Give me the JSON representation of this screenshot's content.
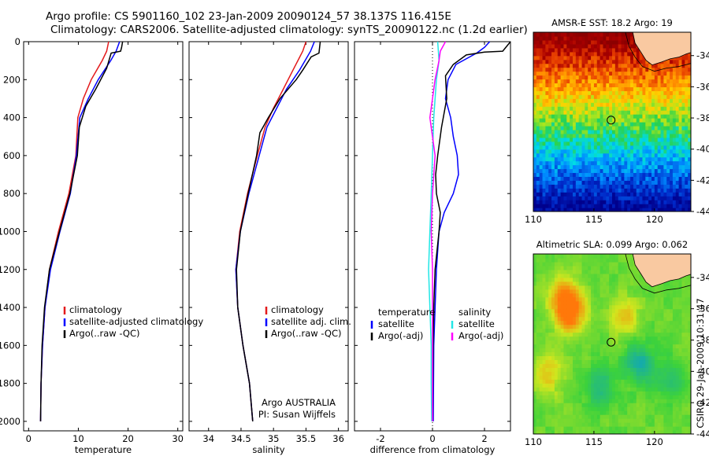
{
  "header": {
    "line1": "Argo profile: CS 5901160_102 23-Jan-2009 20090124_57 38.137S 116.415E",
    "line2": "Climatology: CARS2006. Satellite-adjusted climatology: synTS_20090122.nc (1.2d earlier)"
  },
  "colors": {
    "climatology": "#e31a1c",
    "satellite": "#0000ff",
    "argo": "#000000",
    "satellite_salinity": "#22e6e6",
    "argo_adj_salinity": "#ff00ff",
    "land": "#f9c9a1"
  },
  "chart_data": [
    {
      "type": "line",
      "xlabel": "temperature",
      "xlim": [
        -1,
        31
      ],
      "ylim": [
        2050,
        0
      ],
      "xticks": [
        0,
        10,
        20,
        30
      ],
      "yticks": [
        0,
        200,
        400,
        600,
        800,
        1000,
        1200,
        1400,
        1600,
        1800,
        2000
      ],
      "legend": [
        "climatology",
        "satellite-adjusted climatology",
        "Argo(..raw -QC)"
      ],
      "series": [
        {
          "name": "climatology",
          "color": "#e31a1c",
          "x": [
            16.1,
            15.7,
            14.8,
            12.6,
            11.0,
            9.9,
            9.5,
            8.1,
            6.0,
            4.2,
            3.3,
            2.8,
            2.5,
            2.4
          ],
          "y": [
            0,
            50,
            100,
            200,
            300,
            400,
            600,
            800,
            1000,
            1200,
            1400,
            1600,
            1800,
            2000
          ]
        },
        {
          "name": "satellite-adjusted climatology",
          "color": "#0000ff",
          "x": [
            18.3,
            17.6,
            16.5,
            14.0,
            12.0,
            10.3,
            9.6,
            8.4,
            6.3,
            4.4,
            3.3,
            2.8,
            2.5,
            2.4
          ],
          "y": [
            0,
            50,
            100,
            200,
            300,
            400,
            600,
            800,
            1000,
            1200,
            1400,
            1600,
            1800,
            2000
          ]
        },
        {
          "name": "Argo(..raw -QC)",
          "color": "#000000",
          "x": [
            18.9,
            18.7,
            18.5,
            16.6,
            15.7,
            13.5,
            11.5,
            10.2,
            9.8,
            8.3,
            6.2,
            4.2,
            3.2,
            2.7,
            2.5,
            2.4
          ],
          "y": [
            0,
            30,
            50,
            60,
            140,
            250,
            340,
            450,
            600,
            800,
            1000,
            1200,
            1400,
            1600,
            1800,
            2000
          ]
        }
      ]
    },
    {
      "type": "line",
      "xlabel": "salinity",
      "xlim": [
        33.7,
        36.15
      ],
      "ylim": [
        2050,
        0
      ],
      "xticks": [
        34,
        34.5,
        35,
        35.5,
        36
      ],
      "yticks": [
        0,
        200,
        400,
        600,
        800,
        1000,
        1200,
        1400,
        1600,
        1800,
        2000
      ],
      "legend": [
        "climatology",
        "satellite adj. clim.",
        "Argo(..raw -QC)"
      ],
      "annotations": [
        "Argo AUSTRALIA",
        "PI: Susan Wijffels"
      ],
      "series": [
        {
          "name": "climatology",
          "color": "#e31a1c",
          "x": [
            35.5,
            35.45,
            35.3,
            35.15,
            35.0,
            34.87,
            34.75,
            34.6,
            34.48,
            34.42,
            34.45,
            34.53,
            34.63,
            34.68
          ],
          "y": [
            0,
            50,
            150,
            250,
            350,
            450,
            600,
            800,
            1000,
            1200,
            1400,
            1600,
            1800,
            2000
          ]
        },
        {
          "name": "satellite adj. clim.",
          "color": "#0000ff",
          "x": [
            35.63,
            35.57,
            35.4,
            35.2,
            35.05,
            34.9,
            34.78,
            34.62,
            34.49,
            34.42,
            34.45,
            34.53,
            34.63,
            34.68
          ],
          "y": [
            0,
            50,
            150,
            250,
            350,
            450,
            600,
            800,
            1000,
            1200,
            1400,
            1600,
            1800,
            2000
          ]
        },
        {
          "name": "Argo(..raw -QC)",
          "color": "#000000",
          "x": [
            35.72,
            35.7,
            35.58,
            35.45,
            35.35,
            35.1,
            34.92,
            34.79,
            34.74,
            34.61,
            34.49,
            34.43,
            34.45,
            34.53,
            34.63,
            34.68
          ],
          "y": [
            0,
            60,
            80,
            150,
            200,
            300,
            400,
            480,
            600,
            800,
            1000,
            1200,
            1400,
            1600,
            1800,
            2000
          ]
        }
      ]
    },
    {
      "type": "line",
      "xlabel": "difference from climatology",
      "xlim": [
        -3,
        3
      ],
      "ylim": [
        2050,
        0
      ],
      "xticks": [
        -2,
        0,
        2
      ],
      "yticks": [
        0,
        200,
        400,
        600,
        800,
        1000,
        1200,
        1400,
        1600,
        1800,
        2000
      ],
      "legend_columns": [
        {
          "heading": "temperature",
          "items": [
            "satellite",
            "Argo(-adj)"
          ]
        },
        {
          "heading": "salinity",
          "items": [
            "satellite",
            "Argo(-adj)"
          ]
        }
      ],
      "series": [
        {
          "name": "temperature satellite",
          "color": "#0000ff",
          "x": [
            2.2,
            2.0,
            1.7,
            0.9,
            0.6,
            0.5,
            0.7,
            0.8,
            0.95,
            1.0,
            0.8,
            0.45,
            0.25,
            0.15,
            0.1,
            0.05,
            0.03
          ],
          "y": [
            0,
            30,
            60,
            120,
            200,
            300,
            400,
            500,
            600,
            700,
            800,
            900,
            1000,
            1200,
            1400,
            1600,
            2000
          ]
        },
        {
          "name": "temperature Argo(-adj)",
          "color": "#000000",
          "x": [
            3.0,
            2.7,
            2.0,
            1.3,
            0.8,
            0.5,
            0.55,
            0.35,
            0.2,
            0.12,
            0.15,
            0.3,
            0.25,
            0.1,
            0.05,
            0.02,
            0.0
          ],
          "y": [
            0,
            50,
            55,
            70,
            120,
            180,
            300,
            450,
            600,
            700,
            800,
            900,
            1000,
            1200,
            1400,
            1600,
            2000
          ]
        },
        {
          "name": "salinity satellite",
          "color": "#22e6e6",
          "x": [
            0.2,
            0.25,
            0.15,
            0.1,
            0.05,
            0.0,
            -0.05,
            -0.1,
            -0.15,
            -0.1,
            -0.05,
            -0.05,
            -0.03
          ],
          "y": [
            0,
            100,
            200,
            300,
            400,
            600,
            800,
            1000,
            1200,
            1400,
            1600,
            1800,
            2000
          ]
        },
        {
          "name": "salinity Argo(-adj)",
          "color": "#ff00ff",
          "x": [
            0.5,
            0.3,
            0.25,
            0.1,
            -0.1,
            0.1,
            0.0,
            -0.05,
            0.0,
            0.0,
            0.0
          ],
          "y": [
            0,
            50,
            100,
            200,
            400,
            600,
            800,
            1000,
            1200,
            1600,
            2000
          ]
        }
      ]
    },
    {
      "type": "heatmap",
      "title": "AMSR-E SST: 18.2 Argo: 19",
      "xlim": [
        110,
        123
      ],
      "ylim": [
        -44,
        -32.5
      ],
      "xticks": [
        110,
        115,
        120
      ],
      "yticks": [
        -44,
        -42,
        -40,
        -38,
        -36,
        -34
      ],
      "argo_position": {
        "lon": 116.415,
        "lat": -38.137
      }
    },
    {
      "type": "heatmap",
      "title": "Altimetric SLA: 0.099 Argo: 0.062",
      "xlim": [
        110,
        123
      ],
      "ylim": [
        -44,
        -32.5
      ],
      "xticks": [
        110,
        115,
        120
      ],
      "yticks": [
        -44,
        -42,
        -40,
        -38,
        -36,
        -34
      ],
      "argo_position": {
        "lon": 116.415,
        "lat": -38.137
      }
    }
  ],
  "footer": {
    "credit": "CSIRO 29-Jan-2009 10:31:47"
  }
}
